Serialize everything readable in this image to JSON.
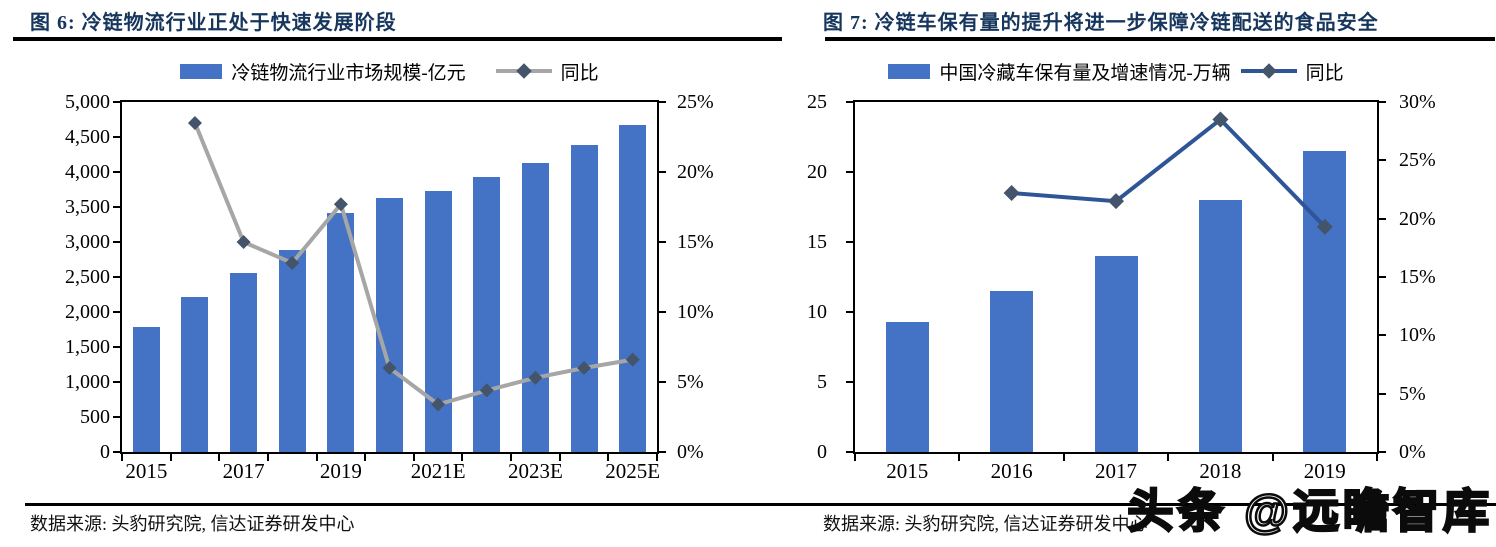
{
  "watermark": "头条 @远瞻智库",
  "figures": [
    {
      "title": "图 6: 冷链物流行业正处于快速发展阶段",
      "source": "数据来源: 头豹研究院, 信达证券研发中心",
      "legend": [
        {
          "kind": "bar",
          "label": "冷链物流行业市场规模-亿元",
          "color": "#4472C4"
        },
        {
          "kind": "line",
          "label": "同比",
          "color": "#A6A6A6",
          "marker": "#44546A"
        }
      ],
      "chart_data": {
        "type": "bar+line",
        "categories": [
          "2015",
          "2016",
          "2017",
          "2018",
          "2019",
          "2020",
          "2021E",
          "2022E",
          "2023E",
          "2024E",
          "2025E"
        ],
        "x_ticks": [
          {
            "label": "2015",
            "i": 0
          },
          {
            "label": "2017",
            "i": 2
          },
          {
            "label": "2019",
            "i": 4
          },
          {
            "label": "2021E",
            "i": 6
          },
          {
            "label": "2023E",
            "i": 8
          },
          {
            "label": "2025E",
            "i": 10
          }
        ],
        "series": [
          {
            "name": "冷链物流行业市场规模-亿元",
            "type": "bar",
            "axis": "left",
            "color": "#4472C4",
            "values": [
              1780,
              2210,
              2560,
              2890,
              3410,
              3630,
              3730,
              3930,
              4130,
              4390,
              4670
            ]
          },
          {
            "name": "同比",
            "type": "line",
            "axis": "right",
            "color": "#A6A6A6",
            "marker": "#44546A",
            "values": [
              null,
              23.5,
              15,
              13.5,
              17.7,
              6,
              3.4,
              4.4,
              5.3,
              6,
              6.6
            ]
          }
        ],
        "left_axis": {
          "min": 0,
          "max": 5000,
          "step": 500,
          "format": "thousands"
        },
        "right_axis": {
          "min": 0,
          "max": 25,
          "step": 5,
          "format": "percent"
        },
        "grid": false,
        "legend_position": "top"
      }
    },
    {
      "title": "图 7: 冷链车保有量的提升将进一步保障冷链配送的食品安全",
      "source": "数据来源: 头豹研究院, 信达证券研发中心",
      "legend": [
        {
          "kind": "bar",
          "label": "中国冷藏车保有量及增速情况-万辆",
          "color": "#4472C4"
        },
        {
          "kind": "line",
          "label": "同比",
          "color": "#2E5696",
          "marker": "#44546A"
        }
      ],
      "chart_data": {
        "type": "bar+line",
        "categories": [
          "2015",
          "2016",
          "2017",
          "2018",
          "2019"
        ],
        "x_ticks": [
          {
            "label": "2015",
            "i": 0
          },
          {
            "label": "2016",
            "i": 1
          },
          {
            "label": "2017",
            "i": 2
          },
          {
            "label": "2018",
            "i": 3
          },
          {
            "label": "2019",
            "i": 4
          }
        ],
        "series": [
          {
            "name": "中国冷藏车保有量及增速情况-万辆",
            "type": "bar",
            "axis": "left",
            "color": "#4472C4",
            "values": [
              9.3,
              11.5,
              14,
              18,
              21.5
            ]
          },
          {
            "name": "同比",
            "type": "line",
            "axis": "right",
            "color": "#2E5696",
            "marker": "#44546A",
            "values": [
              null,
              22.2,
              21.5,
              28.5,
              19.3
            ]
          }
        ],
        "left_axis": {
          "min": 0,
          "max": 25,
          "step": 5,
          "format": "plain"
        },
        "right_axis": {
          "min": 0,
          "max": 30,
          "step": 5,
          "format": "percent"
        },
        "grid": false,
        "legend_position": "top"
      }
    }
  ]
}
